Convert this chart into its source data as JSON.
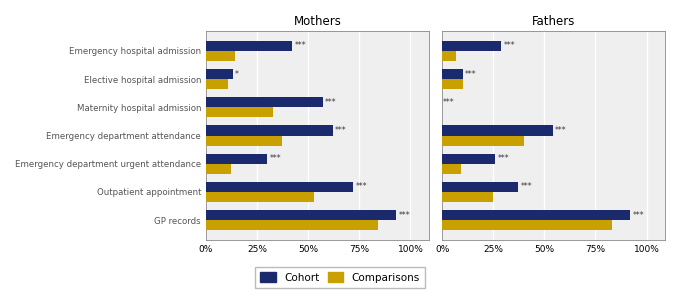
{
  "categories": [
    "GP records",
    "Outpatient appointment",
    "Emergency department urgent attendance",
    "Emergency department attendance",
    "Maternity hospital admission",
    "Elective hospital admission",
    "Emergency hospital admission"
  ],
  "mothers_cohort": [
    0.93,
    0.72,
    0.3,
    0.62,
    0.57,
    0.13,
    0.42
  ],
  "mothers_comparisons": [
    0.84,
    0.53,
    0.12,
    0.37,
    0.33,
    0.11,
    0.14
  ],
  "mothers_stars": [
    "***",
    "***",
    "***",
    "***",
    "***",
    "*",
    "***"
  ],
  "fathers_cohort": [
    0.92,
    0.37,
    0.26,
    0.54,
    0.0,
    0.1,
    0.29
  ],
  "fathers_comparisons": [
    0.83,
    0.25,
    0.09,
    0.4,
    0.0,
    0.1,
    0.07
  ],
  "fathers_stars": [
    "***",
    "***",
    "***",
    "***",
    "***",
    "***",
    "***"
  ],
  "cohort_color": "#1a2a6c",
  "comparison_color": "#c8a000",
  "bg_color": "#efefef",
  "title_mothers": "Mothers",
  "title_fathers": "Fathers",
  "legend_cohort": "Cohort",
  "legend_comparisons": "Comparisons",
  "xlim": [
    0,
    1.09
  ],
  "xticks": [
    0,
    0.25,
    0.5,
    0.75,
    1.0
  ],
  "xticklabels": [
    "0%",
    "25%",
    "50%",
    "75%",
    "100%"
  ]
}
